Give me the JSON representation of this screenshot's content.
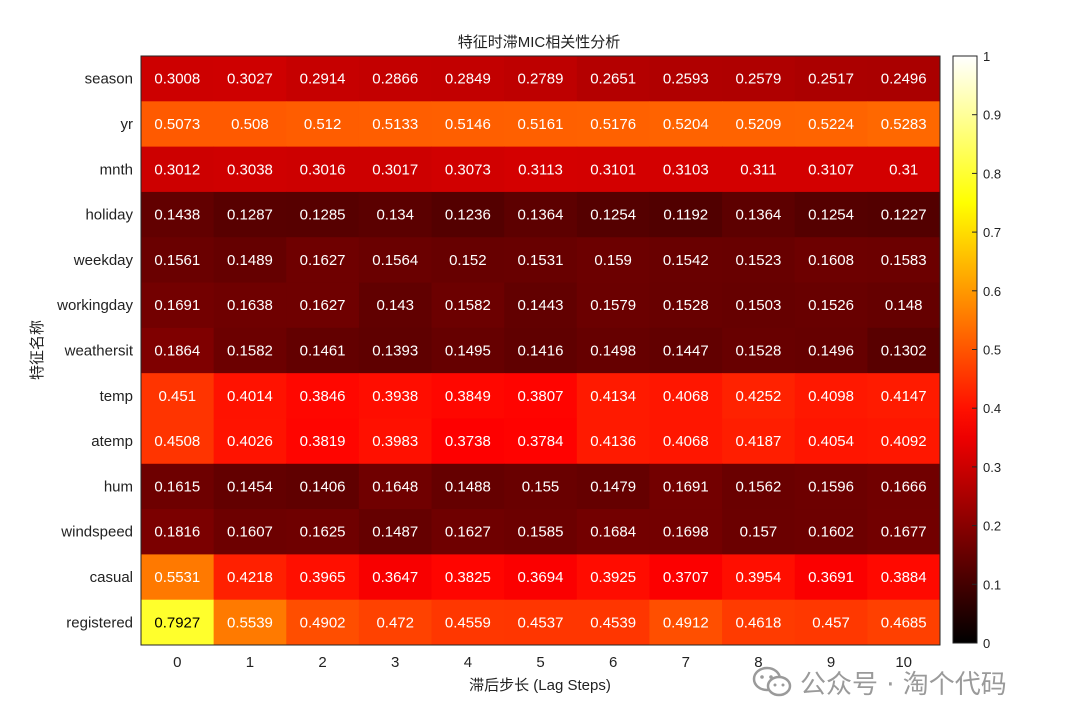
{
  "chart_data": {
    "type": "heatmap",
    "title": "特征时滞MIC相关性分析",
    "xlabel": "滞后步长 (Lag Steps)",
    "ylabel": "特征名称",
    "x_categories": [
      "0",
      "1",
      "2",
      "3",
      "4",
      "5",
      "6",
      "7",
      "8",
      "9",
      "10"
    ],
    "y_categories": [
      "season",
      "yr",
      "mnth",
      "holiday",
      "weekday",
      "workingday",
      "weathersit",
      "temp",
      "atemp",
      "hum",
      "windspeed",
      "casual",
      "registered"
    ],
    "values": [
      [
        0.3008,
        0.3027,
        0.2914,
        0.2866,
        0.2849,
        0.2789,
        0.2651,
        0.2593,
        0.2579,
        0.2517,
        0.2496
      ],
      [
        0.5073,
        0.508,
        0.512,
        0.5133,
        0.5146,
        0.5161,
        0.5176,
        0.5204,
        0.5209,
        0.5224,
        0.5283
      ],
      [
        0.3012,
        0.3038,
        0.3016,
        0.3017,
        0.3073,
        0.3113,
        0.3101,
        0.3103,
        0.311,
        0.3107,
        0.31
      ],
      [
        0.1438,
        0.1287,
        0.1285,
        0.134,
        0.1236,
        0.1364,
        0.1254,
        0.1192,
        0.1364,
        0.1254,
        0.1227
      ],
      [
        0.1561,
        0.1489,
        0.1627,
        0.1564,
        0.152,
        0.1531,
        0.159,
        0.1542,
        0.1523,
        0.1608,
        0.1583
      ],
      [
        0.1691,
        0.1638,
        0.1627,
        0.143,
        0.1582,
        0.1443,
        0.1579,
        0.1528,
        0.1503,
        0.1526,
        0.148
      ],
      [
        0.1864,
        0.1582,
        0.1461,
        0.1393,
        0.1495,
        0.1416,
        0.1498,
        0.1447,
        0.1528,
        0.1496,
        0.1302
      ],
      [
        0.451,
        0.4014,
        0.3846,
        0.3938,
        0.3849,
        0.3807,
        0.4134,
        0.4068,
        0.4252,
        0.4098,
        0.4147
      ],
      [
        0.4508,
        0.4026,
        0.3819,
        0.3983,
        0.3738,
        0.3784,
        0.4136,
        0.4068,
        0.4187,
        0.4054,
        0.4092
      ],
      [
        0.1615,
        0.1454,
        0.1406,
        0.1648,
        0.1488,
        0.155,
        0.1479,
        0.1691,
        0.1562,
        0.1596,
        0.1666
      ],
      [
        0.1816,
        0.1607,
        0.1625,
        0.1487,
        0.1627,
        0.1585,
        0.1684,
        0.1698,
        0.157,
        0.1602,
        0.1677
      ],
      [
        0.5531,
        0.4218,
        0.3965,
        0.3647,
        0.3825,
        0.3694,
        0.3925,
        0.3707,
        0.3954,
        0.3691,
        0.3884
      ],
      [
        0.7927,
        0.5539,
        0.4902,
        0.472,
        0.4559,
        0.4537,
        0.4539,
        0.4912,
        0.4618,
        0.457,
        0.4685
      ]
    ],
    "colormap": "hot",
    "clim": [
      0,
      1
    ],
    "colorbar_ticks": [
      "0",
      "0.1",
      "0.2",
      "0.3",
      "0.4",
      "0.5",
      "0.6",
      "0.7",
      "0.8",
      "0.9",
      "1"
    ],
    "colorbar_position": "right"
  },
  "watermark": {
    "text": "公众号 · 淘个代码",
    "icon": "wechat-icon"
  }
}
